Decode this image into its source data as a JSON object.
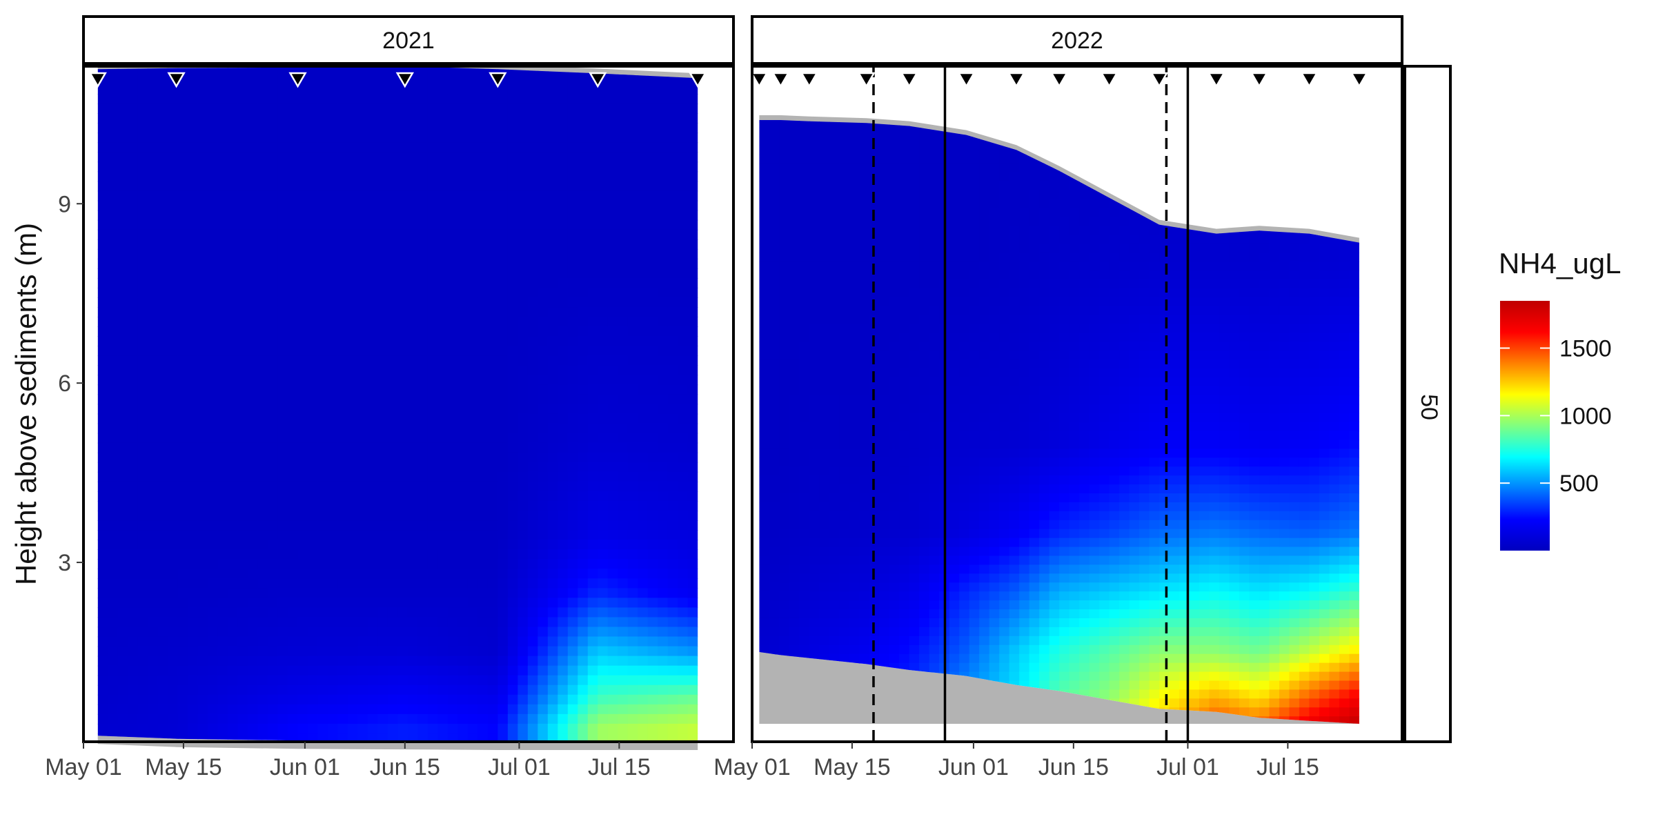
{
  "chart_data": {
    "type": "heatmap",
    "ylabel": "Height above sediments (m)",
    "y_ticks": [
      3,
      6,
      9
    ],
    "ylim": [
      0,
      11.3
    ],
    "x_tick_labels": [
      "May 01",
      "May 15",
      "Jun 01",
      "Jun 15",
      "Jul 01",
      "Jul 15"
    ],
    "facet_row_label": "50",
    "legend": {
      "title": "NH4_ugL",
      "ticks": [
        500,
        1000,
        1500
      ],
      "range": [
        0,
        1850
      ],
      "colors": [
        "#0000bf",
        "#0000ff",
        "#0080ff",
        "#00ffff",
        "#80ff80",
        "#ffff00",
        "#ff8000",
        "#ff0000",
        "#bf0000"
      ]
    },
    "panels": [
      {
        "label": "2021",
        "xlim": [
          "2021-05-01",
          "2021-07-31"
        ],
        "sampling_dates": [
          "2021-05-03",
          "2021-05-14",
          "2021-05-31",
          "2021-06-15",
          "2021-06-28",
          "2021-07-12",
          "2021-07-26"
        ],
        "surface_m": [
          11.25,
          11.27,
          11.28,
          11.3,
          11.25,
          11.18,
          11.1
        ],
        "bottom_m": [
          0.1,
          0.05,
          0.02,
          0.01,
          0.0,
          0.0,
          0.0
        ],
        "vlines_solid": [],
        "vlines_dashed": [],
        "depth_profile_m": [
          0.25,
          0.75,
          1.5,
          2.5,
          3.5,
          5.0,
          8.0,
          11.0
        ],
        "nh4_ugL": [
          [
            60,
            80,
            230,
            280,
            230,
            980,
            1050
          ],
          [
            50,
            70,
            150,
            200,
            160,
            800,
            880
          ],
          [
            40,
            50,
            80,
            90,
            60,
            600,
            500
          ],
          [
            30,
            30,
            40,
            40,
            40,
            300,
            180
          ],
          [
            20,
            20,
            20,
            20,
            20,
            140,
            110
          ],
          [
            20,
            20,
            20,
            20,
            20,
            70,
            60
          ],
          [
            20,
            20,
            20,
            20,
            20,
            20,
            20
          ],
          [
            20,
            20,
            20,
            20,
            20,
            20,
            20
          ]
        ]
      },
      {
        "label": "2022",
        "xlim": [
          "2022-05-01",
          "2022-07-31"
        ],
        "sampling_dates": [
          "2022-05-02",
          "2022-05-05",
          "2022-05-09",
          "2022-05-17",
          "2022-05-23",
          "2022-05-31",
          "2022-06-07",
          "2022-06-13",
          "2022-06-20",
          "2022-06-27",
          "2022-07-05",
          "2022-07-11",
          "2022-07-18",
          "2022-07-25"
        ],
        "surface_m": [
          10.4,
          10.4,
          10.38,
          10.35,
          10.3,
          10.15,
          9.9,
          9.55,
          9.1,
          8.65,
          8.5,
          8.55,
          8.5,
          8.35
        ],
        "bottom_m": [
          0.3,
          0.3,
          0.3,
          0.3,
          0.3,
          0.3,
          0.3,
          0.3,
          0.3,
          0.3,
          0.3,
          0.3,
          0.3,
          0.3
        ],
        "sediment_top_m": [
          1.5,
          1.45,
          1.4,
          1.3,
          1.2,
          1.1,
          0.95,
          0.85,
          0.7,
          0.55,
          0.5,
          0.4,
          0.35,
          0.3
        ],
        "vlines_solid": [
          "2022-05-28",
          "2022-07-01"
        ],
        "vlines_dashed": [
          "2022-05-18",
          "2022-06-28"
        ],
        "depth_profile_m": [
          0.25,
          0.75,
          1.5,
          2.5,
          3.5,
          5.0,
          8.0,
          10.5
        ],
        "nh4_ugL": [
          [
            100,
            120,
            200,
            300,
            350,
            600,
            700,
            900,
            1050,
            1250,
            1500,
            1450,
            1700,
            1850
          ],
          [
            80,
            100,
            160,
            250,
            300,
            500,
            650,
            850,
            950,
            1150,
            1300,
            1200,
            1450,
            1650
          ],
          [
            60,
            80,
            120,
            180,
            250,
            400,
            600,
            750,
            850,
            950,
            950,
            900,
            1050,
            1200
          ],
          [
            40,
            50,
            70,
            100,
            150,
            300,
            400,
            550,
            600,
            650,
            700,
            650,
            700,
            800
          ],
          [
            30,
            30,
            40,
            50,
            60,
            120,
            200,
            300,
            350,
            420,
            450,
            420,
            400,
            450
          ],
          [
            20,
            20,
            30,
            30,
            40,
            60,
            70,
            100,
            150,
            200,
            200,
            180,
            200,
            250
          ],
          [
            20,
            20,
            20,
            20,
            20,
            20,
            30,
            40,
            50,
            60,
            60,
            60,
            70,
            80
          ],
          [
            20,
            20,
            20,
            20,
            20,
            20,
            20,
            20,
            20,
            30,
            40,
            40,
            50,
            50
          ]
        ]
      }
    ]
  }
}
